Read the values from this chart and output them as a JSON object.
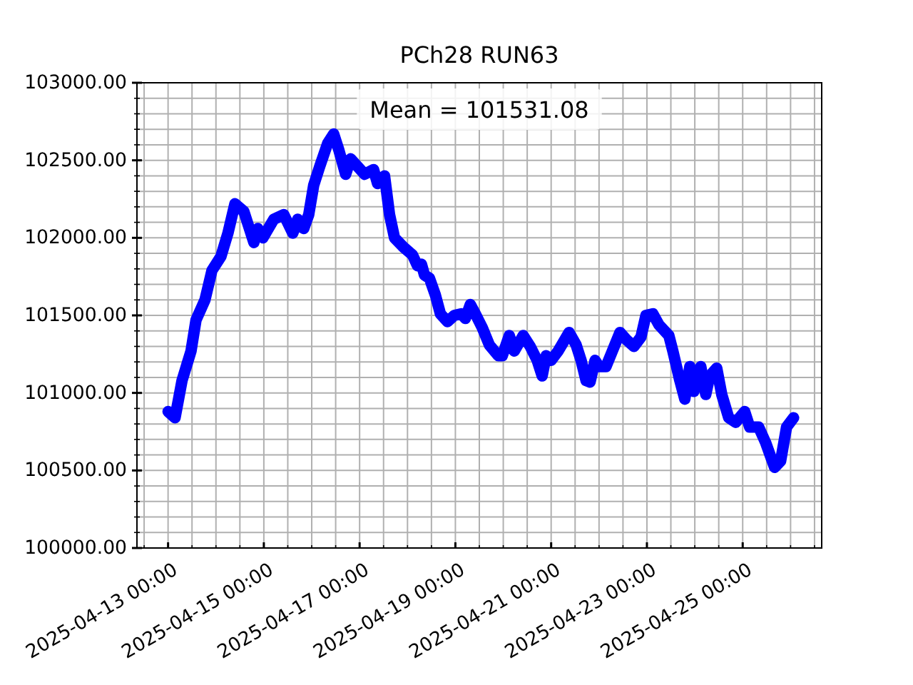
{
  "chart_data": {
    "type": "line",
    "title": "PCh28 RUN63",
    "annotations": [
      "Mean = 101531.08"
    ],
    "x": [
      "2025-04-13T00:00",
      "2025-04-13T03:30",
      "2025-04-13T07:00",
      "2025-04-13T11:30",
      "2025-04-13T14:00",
      "2025-04-13T18:30",
      "2025-04-13T22:00",
      "2025-04-14T02:30",
      "2025-04-14T06:00",
      "2025-04-14T09:30",
      "2025-04-14T14:00",
      "2025-04-14T19:00",
      "2025-04-14T21:00",
      "2025-04-14T23:30",
      "2025-04-15T05:00",
      "2025-04-15T10:00",
      "2025-04-15T14:30",
      "2025-04-15T17:00",
      "2025-04-15T20:00",
      "2025-04-15T22:30",
      "2025-04-16T01:00",
      "2025-04-16T04:00",
      "2025-04-16T08:00",
      "2025-04-16T11:00",
      "2025-04-16T13:30",
      "2025-04-16T17:00",
      "2025-04-16T19:30",
      "2025-04-16T23:00",
      "2025-04-17T02:30",
      "2025-04-17T07:00",
      "2025-04-17T09:00",
      "2025-04-17T12:30",
      "2025-04-17T15:00",
      "2025-04-17T17:30",
      "2025-04-17T22:00",
      "2025-04-18T02:30",
      "2025-04-18T05:00",
      "2025-04-18T07:00",
      "2025-04-18T08:30",
      "2025-04-18T11:00",
      "2025-04-18T14:00",
      "2025-04-18T16:30",
      "2025-04-18T20:00",
      "2025-04-18T23:30",
      "2025-04-19T03:00",
      "2025-04-19T05:00",
      "2025-04-19T07:30",
      "2025-04-19T10:00",
      "2025-04-19T13:30",
      "2025-04-19T17:00",
      "2025-04-19T21:30",
      "2025-04-19T23:30",
      "2025-04-20T03:00",
      "2025-04-20T05:30",
      "2025-04-20T10:00",
      "2025-04-20T13:30",
      "2025-04-20T17:00",
      "2025-04-20T19:30",
      "2025-04-20T21:30",
      "2025-04-21T00:00",
      "2025-04-21T03:30",
      "2025-04-21T09:00",
      "2025-04-21T12:30",
      "2025-04-21T15:00",
      "2025-04-21T17:30",
      "2025-04-21T19:30",
      "2025-04-21T22:00",
      "2025-04-22T00:00",
      "2025-04-22T03:30",
      "2025-04-22T07:00",
      "2025-04-22T10:30",
      "2025-04-22T14:00",
      "2025-04-22T17:30",
      "2025-04-22T21:00",
      "2025-04-22T23:30",
      "2025-04-23T03:00",
      "2025-04-23T06:00",
      "2025-04-23T11:00",
      "2025-04-23T13:00",
      "2025-04-23T16:30",
      "2025-04-23T19:00",
      "2025-04-23T21:30",
      "2025-04-23T23:30",
      "2025-04-24T03:00",
      "2025-04-24T05:30",
      "2025-04-24T07:30",
      "2025-04-24T11:00",
      "2025-04-24T13:30",
      "2025-04-24T17:00",
      "2025-04-24T20:30",
      "2025-04-25T01:00",
      "2025-04-25T03:30",
      "2025-04-25T08:00",
      "2025-04-25T11:30",
      "2025-04-25T14:00",
      "2025-04-25T16:00",
      "2025-04-25T19:00",
      "2025-04-25T22:00",
      "2025-04-26T01:30"
    ],
    "series": [
      {
        "color": "#0000ff",
        "values": [
          100880,
          100840,
          101080,
          101270,
          101470,
          101600,
          101790,
          101880,
          102030,
          102220,
          102170,
          101970,
          102060,
          102000,
          102120,
          102150,
          102030,
          102120,
          102060,
          102150,
          102340,
          102460,
          102610,
          102670,
          102570,
          102410,
          102510,
          102460,
          102410,
          102440,
          102350,
          102400,
          102150,
          102000,
          101940,
          101890,
          101820,
          101830,
          101760,
          101740,
          101630,
          101510,
          101460,
          101500,
          101510,
          101480,
          101570,
          101510,
          101420,
          101310,
          101240,
          101240,
          101370,
          101270,
          101370,
          101300,
          101210,
          101110,
          101240,
          101210,
          101270,
          101390,
          101310,
          101210,
          101080,
          101070,
          101210,
          101170,
          101170,
          101280,
          101390,
          101340,
          101300,
          101360,
          101500,
          101510,
          101440,
          101370,
          101270,
          101080,
          100960,
          101170,
          101010,
          101170,
          100990,
          101110,
          101160,
          100990,
          100840,
          100810,
          100880,
          100780,
          100780,
          100680,
          100590,
          100520,
          100560,
          100780,
          100840
        ]
      }
    ],
    "xlim": [
      "2025-04-12T08:24",
      "2025-04-26T15:36"
    ],
    "ylim": [
      100000,
      103000
    ],
    "xticks": [
      {
        "value": "2025-04-12T12:00",
        "label": null
      },
      {
        "value": "2025-04-13",
        "label": "2025-04-13 00:00"
      },
      {
        "value": "2025-04-13T12:00",
        "label": null
      },
      {
        "value": "2025-04-14",
        "label": null
      },
      {
        "value": "2025-04-14T12:00",
        "label": null
      },
      {
        "value": "2025-04-15",
        "label": "2025-04-15 00:00"
      },
      {
        "value": "2025-04-15T12:00",
        "label": null
      },
      {
        "value": "2025-04-16",
        "label": null
      },
      {
        "value": "2025-04-16T12:00",
        "label": null
      },
      {
        "value": "2025-04-17",
        "label": "2025-04-17 00:00"
      },
      {
        "value": "2025-04-17T12:00",
        "label": null
      },
      {
        "value": "2025-04-18",
        "label": null
      },
      {
        "value": "2025-04-18T12:00",
        "label": null
      },
      {
        "value": "2025-04-19",
        "label": "2025-04-19 00:00"
      },
      {
        "value": "2025-04-19T12:00",
        "label": null
      },
      {
        "value": "2025-04-20",
        "label": null
      },
      {
        "value": "2025-04-20T12:00",
        "label": null
      },
      {
        "value": "2025-04-21",
        "label": "2025-04-21 00:00"
      },
      {
        "value": "2025-04-21T12:00",
        "label": null
      },
      {
        "value": "2025-04-22",
        "label": null
      },
      {
        "value": "2025-04-22T12:00",
        "label": null
      },
      {
        "value": "2025-04-23",
        "label": "2025-04-23 00:00"
      },
      {
        "value": "2025-04-23T12:00",
        "label": null
      },
      {
        "value": "2025-04-24",
        "label": null
      },
      {
        "value": "2025-04-24T12:00",
        "label": null
      },
      {
        "value": "2025-04-25",
        "label": "2025-04-25 00:00"
      },
      {
        "value": "2025-04-25T12:00",
        "label": null
      },
      {
        "value": "2025-04-26",
        "label": null
      },
      {
        "value": "2025-04-26T12:00",
        "label": null
      }
    ],
    "yticks": [
      {
        "value": 100000,
        "label": "100000.00"
      },
      {
        "value": 100100,
        "label": null
      },
      {
        "value": 100200,
        "label": null
      },
      {
        "value": 100300,
        "label": null
      },
      {
        "value": 100400,
        "label": null
      },
      {
        "value": 100500,
        "label": "100500.00"
      },
      {
        "value": 100600,
        "label": null
      },
      {
        "value": 100700,
        "label": null
      },
      {
        "value": 100800,
        "label": null
      },
      {
        "value": 100900,
        "label": null
      },
      {
        "value": 101000,
        "label": "101000.00"
      },
      {
        "value": 101100,
        "label": null
      },
      {
        "value": 101200,
        "label": null
      },
      {
        "value": 101300,
        "label": null
      },
      {
        "value": 101400,
        "label": null
      },
      {
        "value": 101500,
        "label": "101500.00"
      },
      {
        "value": 101600,
        "label": null
      },
      {
        "value": 101700,
        "label": null
      },
      {
        "value": 101800,
        "label": null
      },
      {
        "value": 101900,
        "label": null
      },
      {
        "value": 102000,
        "label": "102000.00"
      },
      {
        "value": 102100,
        "label": null
      },
      {
        "value": 102200,
        "label": null
      },
      {
        "value": 102300,
        "label": null
      },
      {
        "value": 102400,
        "label": null
      },
      {
        "value": 102500,
        "label": "102500.00"
      },
      {
        "value": 102600,
        "label": null
      },
      {
        "value": 102700,
        "label": null
      },
      {
        "value": 102800,
        "label": null
      },
      {
        "value": 102900,
        "label": null
      },
      {
        "value": 103000,
        "label": "103000.00"
      }
    ],
    "grid": true,
    "line_style": "solid"
  }
}
